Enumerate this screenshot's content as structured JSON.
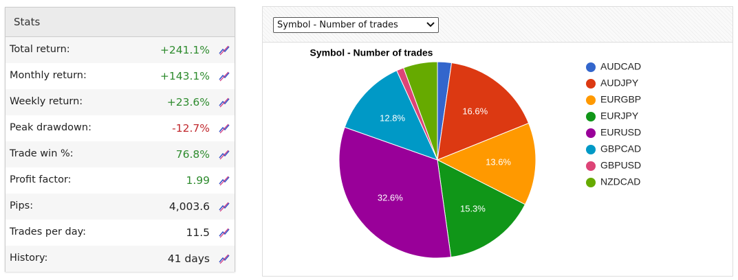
{
  "stats": {
    "title": "Stats",
    "rows": [
      {
        "label": "Total return:",
        "value": "+241.1%",
        "color": "#2e8b2e"
      },
      {
        "label": "Monthly return:",
        "value": "+143.1%",
        "color": "#2e8b2e"
      },
      {
        "label": "Weekly return:",
        "value": "+23.6%",
        "color": "#2e8b2e"
      },
      {
        "label": "Peak drawdown:",
        "value": "-12.7%",
        "color": "#c0282d"
      },
      {
        "label": "Trade win %:",
        "value": "76.8%",
        "color": "#2e8b2e"
      },
      {
        "label": "Profit factor:",
        "value": "1.99",
        "color": "#2e8b2e"
      },
      {
        "label": "Pips:",
        "value": "4,003.6",
        "color": "#222222"
      },
      {
        "label": "Trades per day:",
        "value": "11.5",
        "color": "#222222"
      },
      {
        "label": "History:",
        "value": "41 days",
        "color": "#222222"
      }
    ]
  },
  "dropdown": {
    "selected": "Symbol - Number of trades"
  },
  "chart_data": {
    "type": "pie",
    "title": "Symbol - Number of trades",
    "categories": [
      "AUDCAD",
      "AUDJPY",
      "EURGBP",
      "EURJPY",
      "EURUSD",
      "GBPCAD",
      "GBPUSD",
      "NZDCAD"
    ],
    "values": [
      2.3,
      16.6,
      13.6,
      15.3,
      32.6,
      12.8,
      1.2,
      5.6
    ],
    "value_labels": [
      null,
      "16.6%",
      "13.6%",
      "15.3%",
      "32.6%",
      "12.8%",
      null,
      null
    ],
    "colors": [
      "#3366cc",
      "#dc3912",
      "#ff9900",
      "#109618",
      "#990099",
      "#0099c6",
      "#dd4477",
      "#66aa00"
    ],
    "legend": "right"
  }
}
